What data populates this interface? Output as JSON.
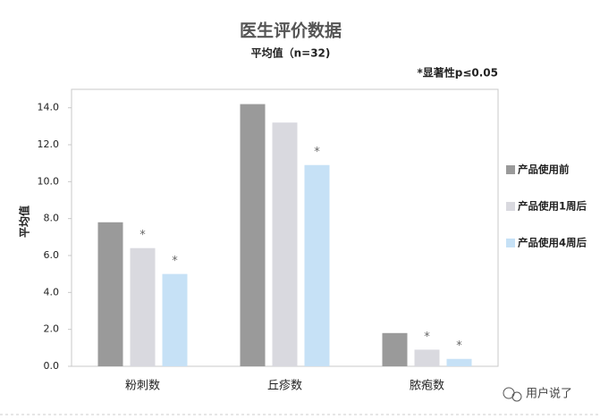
{
  "chart_data": {
    "type": "bar",
    "title": "医生评价数据",
    "subtitle": "平均值（n=32)",
    "annotation": "*显著性p≤0.05",
    "y_label": "平均值",
    "categories": [
      "粉刺数",
      "丘疹数",
      "脓疱数"
    ],
    "series": [
      {
        "name": "产品使用前",
        "color": "#9a9a9a",
        "values": [
          7.8,
          14.2,
          1.8
        ],
        "significance": [
          null,
          null,
          null
        ]
      },
      {
        "name": "产品使用1周后",
        "color": "#d9d9df",
        "values": [
          6.4,
          13.2,
          0.9
        ],
        "significance": [
          "*",
          null,
          "*"
        ]
      },
      {
        "name": "产品使用4周后",
        "color": "#c6e1f6",
        "values": [
          5.0,
          10.9,
          0.4
        ],
        "significance": [
          "*",
          "*",
          "*"
        ]
      }
    ],
    "ylim": [
      0,
      15
    ],
    "yticks": [
      {
        "value": 0,
        "label": "0.0"
      },
      {
        "value": 2,
        "label": "2.0"
      },
      {
        "value": 4,
        "label": "4.0"
      },
      {
        "value": 6,
        "label": "6.0"
      },
      {
        "value": 8,
        "label": "8.0"
      },
      {
        "value": 10,
        "label": "10.0"
      },
      {
        "value": 12,
        "label": "12.0"
      },
      {
        "value": 14,
        "label": "14.0"
      }
    ],
    "grid": false,
    "legend": "right",
    "watermark": "用户说了"
  }
}
